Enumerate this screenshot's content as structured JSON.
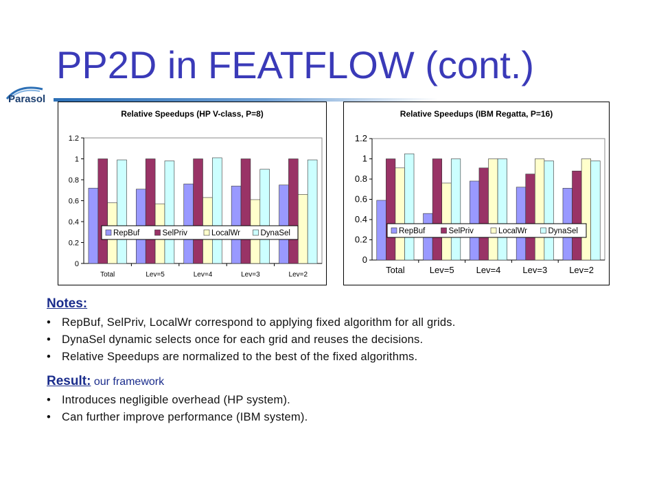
{
  "slide": {
    "title": "PP2D in FEATFLOW (cont.)",
    "logo_text": "Parasol"
  },
  "notes": {
    "heading": "Notes:",
    "bullets": [
      "RepBuf, SelPriv, LocalWr correspond to applying fixed algorithm for all grids.",
      "DynaSel dynamic selects once for each grid and reuses the decisions.",
      "Relative Speedups are normalized to the best of the fixed algorithms."
    ]
  },
  "result": {
    "heading": "Result:",
    "rest": "our framework",
    "bullets": [
      "Introduces negligible overhead (HP system).",
      "Can further improve performance (IBM system)."
    ]
  },
  "colors": {
    "title": "#3a3ab8",
    "heading": "#1a2c8c",
    "series": [
      "#9999ff",
      "#993366",
      "#ffffcc",
      "#ccffff"
    ]
  },
  "chart_data": [
    {
      "type": "bar",
      "title": "Relative Speedups (HP V-class, P=8)",
      "categories": [
        "Total",
        "Lev=5",
        "Lev=4",
        "Lev=3",
        "Lev=2"
      ],
      "ylim": [
        0,
        1.2
      ],
      "yticks": [
        "0",
        "0.2",
        "0.4",
        "0.6",
        "0.8",
        "1",
        "1.2"
      ],
      "grid": false,
      "legend": "inside-center",
      "series": [
        {
          "name": "RepBuf",
          "values": [
            0.72,
            0.71,
            0.76,
            0.74,
            0.75
          ]
        },
        {
          "name": "SelPriv",
          "values": [
            1.0,
            1.0,
            1.0,
            1.0,
            1.0
          ]
        },
        {
          "name": "LocalWr",
          "values": [
            0.58,
            0.57,
            0.63,
            0.61,
            0.66
          ]
        },
        {
          "name": "DynaSel",
          "values": [
            0.99,
            0.98,
            1.01,
            0.9,
            0.99
          ]
        }
      ]
    },
    {
      "type": "bar",
      "title": "Relative Speedups (IBM Regatta, P=16)",
      "categories": [
        "Total",
        "Lev=5",
        "Lev=4",
        "Lev=3",
        "Lev=2"
      ],
      "ylim": [
        0,
        1.2
      ],
      "yticks": [
        "0",
        "0.2",
        "0.4",
        "0.6",
        "0.8",
        "1",
        "1.2"
      ],
      "grid": false,
      "legend": "inside-center",
      "series": [
        {
          "name": "RepBuf",
          "values": [
            0.59,
            0.46,
            0.78,
            0.72,
            0.71
          ]
        },
        {
          "name": "SelPriv",
          "values": [
            1.0,
            1.0,
            0.91,
            0.85,
            0.88
          ]
        },
        {
          "name": "LocalWr",
          "values": [
            0.91,
            0.76,
            1.0,
            1.0,
            1.0
          ]
        },
        {
          "name": "DynaSel",
          "values": [
            1.05,
            1.0,
            1.0,
            0.98,
            0.98
          ]
        }
      ]
    }
  ]
}
